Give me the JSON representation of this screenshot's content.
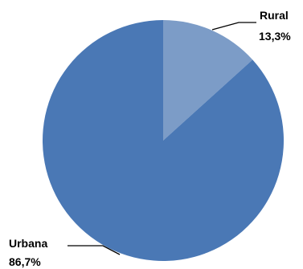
{
  "chart_data": {
    "type": "pie",
    "title": "",
    "start_angle_deg": 0,
    "direction": "clockwise",
    "slices": [
      {
        "label": "Rural",
        "value": 13.3,
        "value_label": "13,3%",
        "color": "#7c9cc7"
      },
      {
        "label": "Urbana",
        "value": 86.7,
        "value_label": "86,7%",
        "color": "#4a78b5"
      }
    ]
  }
}
